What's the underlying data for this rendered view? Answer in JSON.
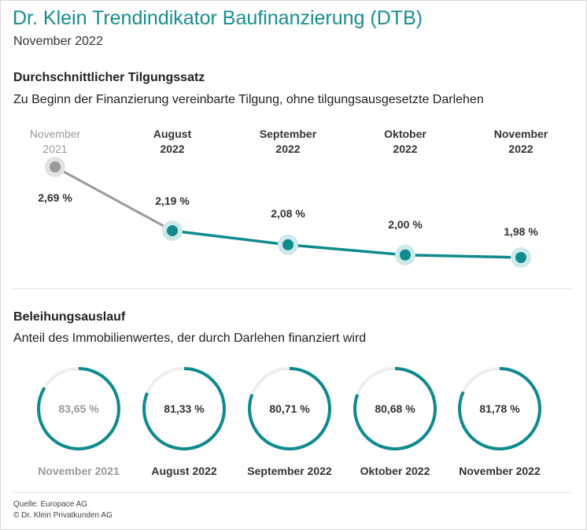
{
  "header": {
    "title": "Dr. Klein Trendindikator Baufinanzierung (DTB)",
    "subtitle": "November 2022"
  },
  "section1": {
    "title": "Durchschnittlicher Tilgungssatz",
    "subtitle": "Zu Beginn der Finanzierung vereinbarte Tilgung, ohne tilgungsausgesetzte Darlehen"
  },
  "section2": {
    "title": "Beleihungsauslauf",
    "subtitle": "Anteil des Immobilienwertes, der durch Darlehen finanziert wird"
  },
  "footer": {
    "source": "Quelle: Europace AG",
    "copyright": "© Dr. Klein Privatkunden AG"
  },
  "colors": {
    "accent": "#0f8a8e",
    "accent_halo": "#cde9ea",
    "past": "#9a9a9a",
    "past_halo": "#e2e2e2",
    "ring_track": "#eeeeee"
  },
  "chart_data": [
    {
      "type": "line",
      "categories": [
        [
          "November",
          "2021"
        ],
        [
          "August",
          "2022"
        ],
        [
          "September",
          "2022"
        ],
        [
          "Oktober",
          "2022"
        ],
        [
          "November",
          "2022"
        ]
      ],
      "values": [
        2.69,
        2.19,
        2.08,
        2.0,
        1.98
      ],
      "value_labels": [
        "2,69 %",
        "2,19 %",
        "2,08 %",
        "2,00 %",
        "1,98 %"
      ],
      "highlight_first_as_past": true
    },
    {
      "type": "pie",
      "subtype": "ring",
      "categories": [
        "November 2021",
        "August 2022",
        "September 2022",
        "Oktober 2022",
        "November 2022"
      ],
      "values": [
        83.65,
        81.33,
        80.71,
        80.68,
        81.78
      ],
      "value_labels": [
        "83,65 %",
        "81,33 %",
        "80,71 %",
        "80,68 %",
        "81,78 %"
      ],
      "max": 100,
      "highlight_first_as_past": true
    }
  ]
}
